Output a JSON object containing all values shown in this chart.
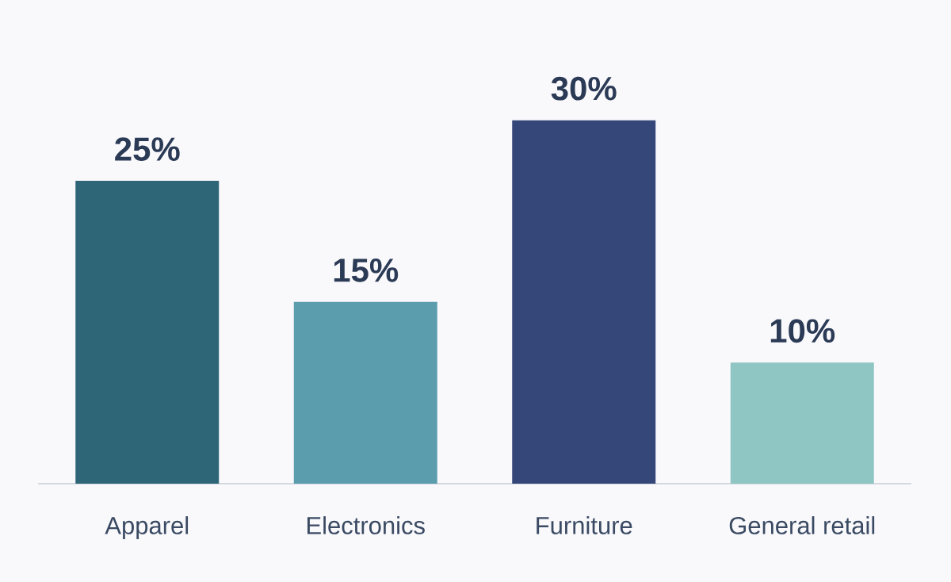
{
  "chart_data": {
    "type": "bar",
    "categories": [
      "Apparel",
      "Electronics",
      "Furniture",
      "General retail"
    ],
    "values": [
      25,
      15,
      30,
      10
    ],
    "value_labels": [
      "25%",
      "15%",
      "30%",
      "10%"
    ],
    "colors": [
      "#2e6678",
      "#5b9dad",
      "#354679",
      "#8fc6c4"
    ]
  }
}
